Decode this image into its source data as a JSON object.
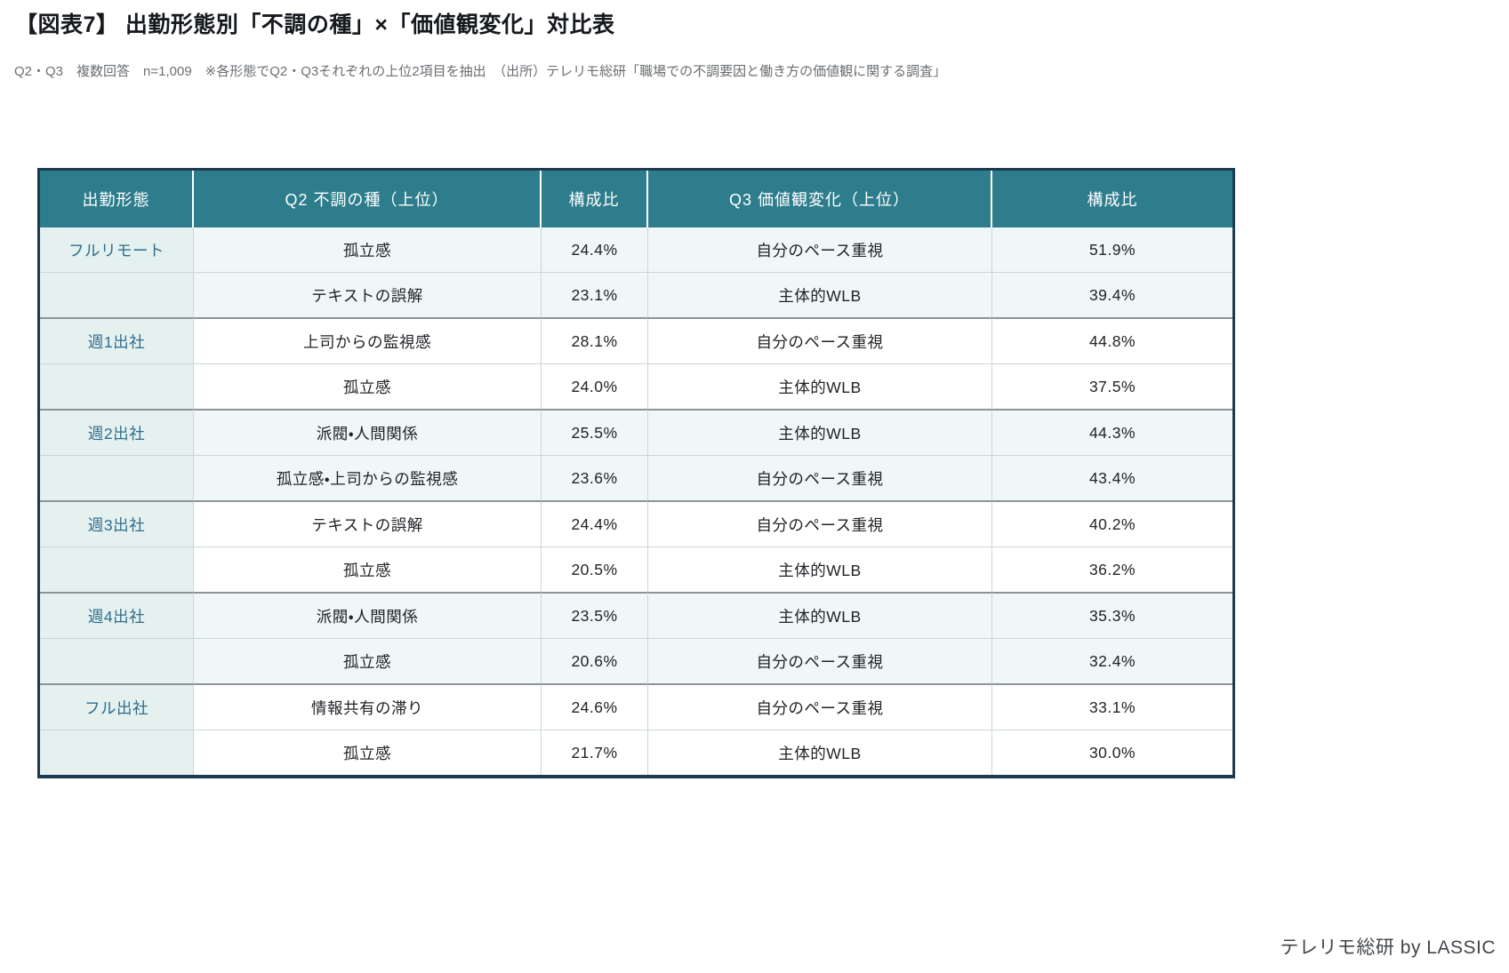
{
  "page": {
    "title": "【図表7】 出勤形態別「不調の種」×「価値観変化」対比表",
    "subtitle": "Q2・Q3　複数回答　n=1,009　※各形態でQ2・Q3それぞれの上位2項目を抽出　（出所）テレリモ総研「職場での不調要因と働き方の価値観に関する調査」",
    "footer": "テレリモ総研 by LASSIC"
  },
  "table": {
    "headers": [
      "出勤形態",
      "Q2 不調の種（上位）",
      "構成比",
      "Q3 価値観変化（上位）",
      "構成比"
    ],
    "groups": [
      {
        "mode": "フルリモート",
        "rows": [
          [
            "孤立感",
            "24.4%",
            "自分のペース重視",
            "51.9%"
          ],
          [
            "テキストの誤解",
            "23.1%",
            "主体的WLB",
            "39.4%"
          ]
        ]
      },
      {
        "mode": "週1出社",
        "rows": [
          [
            "上司からの監視感",
            "28.1%",
            "自分のペース重視",
            "44.8%"
          ],
          [
            "孤立感",
            "24.0%",
            "主体的WLB",
            "37.5%"
          ]
        ]
      },
      {
        "mode": "週2出社",
        "rows": [
          [
            "派閥・人間関係",
            "25.5%",
            "主体的WLB",
            "44.3%"
          ],
          [
            "孤立感・上司からの監視感",
            "23.6%",
            "自分のペース重視",
            "43.4%"
          ]
        ]
      },
      {
        "mode": "週3出社",
        "rows": [
          [
            "テキストの誤解",
            "24.4%",
            "自分のペース重視",
            "40.2%"
          ],
          [
            "孤立感",
            "20.5%",
            "主体的WLB",
            "36.2%"
          ]
        ]
      },
      {
        "mode": "週4出社",
        "rows": [
          [
            "派閥・人間関係",
            "23.5%",
            "主体的WLB",
            "35.3%"
          ],
          [
            "孤立感",
            "20.6%",
            "自分のペース重視",
            "32.4%"
          ]
        ]
      },
      {
        "mode": "フル出社",
        "rows": [
          [
            "情報共有の滞り",
            "24.6%",
            "自分のペース重視",
            "33.1%"
          ],
          [
            "孤立感",
            "21.7%",
            "主体的WLB",
            "30.0%"
          ]
        ]
      }
    ]
  },
  "chart_data": {
    "type": "table",
    "title": "【図表7】 出勤形態別「不調の種」×「価値観変化」対比表",
    "note": "Q2・Q3　複数回答　n=1,009　※各形態でQ2・Q3それぞれの上位2項目を抽出",
    "source": "（出所）テレリモ総研「職場での不調要因と働き方の価値観に関する調査」",
    "columns": [
      "出勤形態",
      "Q2 不調の種（上位）",
      "構成比",
      "Q3 価値観変化（上位）",
      "構成比"
    ],
    "rows": [
      [
        "フルリモート",
        "孤立感",
        "24.4%",
        "自分のペース重視",
        "51.9%"
      ],
      [
        "",
        "テキストの誤解",
        "23.1%",
        "主体的WLB",
        "39.4%"
      ],
      [
        "週1出社",
        "上司からの監視感",
        "28.1%",
        "自分のペース重視",
        "44.8%"
      ],
      [
        "",
        "孤立感",
        "24.0%",
        "主体的WLB",
        "37.5%"
      ],
      [
        "週2出社",
        "派閥・人間関係",
        "25.5%",
        "主体的WLB",
        "44.3%"
      ],
      [
        "",
        "孤立感・上司からの監視感",
        "23.6%",
        "自分のペース重視",
        "43.4%"
      ],
      [
        "週3出社",
        "テキストの誤解",
        "24.4%",
        "自分のペース重視",
        "40.2%"
      ],
      [
        "",
        "孤立感",
        "20.5%",
        "主体的WLB",
        "36.2%"
      ],
      [
        "週4出社",
        "派閥・人間関係",
        "23.5%",
        "主体的WLB",
        "35.3%"
      ],
      [
        "",
        "孤立感",
        "20.6%",
        "自分のペース重視",
        "32.4%"
      ],
      [
        "フル出社",
        "情報共有の滞り",
        "24.6%",
        "自分のペース重視",
        "33.1%"
      ],
      [
        "",
        "孤立感",
        "21.7%",
        "主体的WLB",
        "30.0%"
      ]
    ]
  },
  "colors": {
    "header_bg": "#2e7d8c",
    "header_text": "#ffffff",
    "mode_col_bg": "#e5f1ef",
    "mode_text": "#2e6d8e",
    "tint_row_bg": "#eff7f8",
    "outer_border": "#1c3b52",
    "group_border": "#8d9398",
    "row_border": "#ccd6d9"
  }
}
